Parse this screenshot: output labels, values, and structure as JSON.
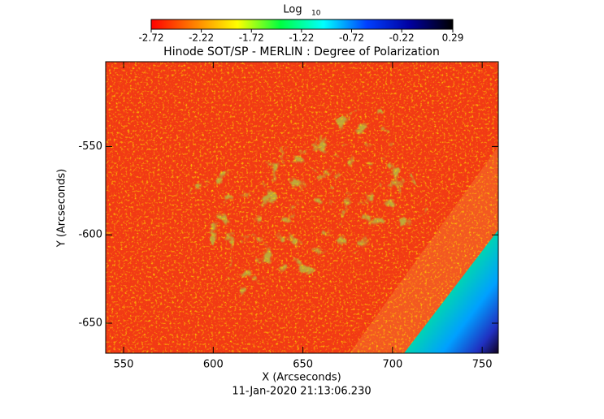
{
  "chart_data": {
    "type": "heatmap",
    "title": "Hinode SOT/SP - MERLIN : Degree of Polarization",
    "x_label": "X (Arcseconds)",
    "y_label": "Y (Arcseconds)",
    "footer": "11-Jan-2020 21:13:06.230",
    "xlim": [
      540,
      759
    ],
    "ylim": [
      -667,
      -502
    ],
    "xticks": [
      550,
      600,
      650,
      700,
      750
    ],
    "yticks": [
      -550,
      -600,
      -650
    ],
    "colorbar": {
      "label": "Log",
      "label_subscript": "10",
      "lim": [
        -2.72,
        0.29
      ],
      "ticks": [
        -2.72,
        -2.22,
        -1.72,
        -1.22,
        -0.72,
        -0.22,
        0.29
      ],
      "colors": [
        "#ff0000",
        "#ff8000",
        "#ffff00",
        "#00ff40",
        "#00ffff",
        "#0040ff",
        "#0000a0",
        "#000000"
      ]
    }
  }
}
